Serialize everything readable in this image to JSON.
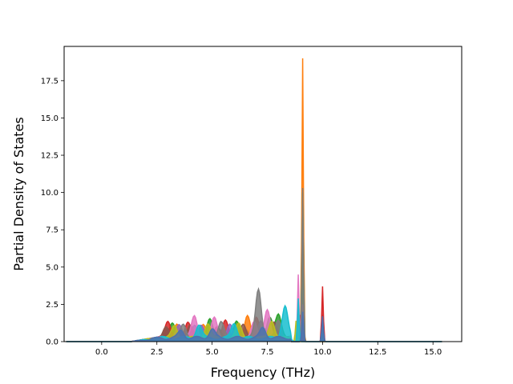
{
  "chart_data": {
    "type": "line",
    "title": "",
    "xlabel": "Frequency (THz)",
    "ylabel": "Partial Density of States",
    "xlim": [
      -1.7,
      16.3
    ],
    "ylim": [
      0,
      19.8
    ],
    "x_ticks": [
      0.0,
      2.5,
      5.0,
      7.5,
      10.0,
      12.5,
      15.0
    ],
    "x_tick_labels": [
      "0.0",
      "2.5",
      "5.0",
      "7.5",
      "10.0",
      "12.5",
      "15.0"
    ],
    "y_ticks": [
      0.0,
      2.5,
      5.0,
      7.5,
      10.0,
      12.5,
      15.0,
      17.5
    ],
    "y_tick_labels": [
      "0.0",
      "2.5",
      "5.0",
      "7.5",
      "10.0",
      "12.5",
      "15.0",
      "17.5"
    ],
    "grid": false,
    "legend": "none",
    "series": [
      {
        "color": "#1f77b4",
        "peaks": [
          [
            3.0,
            0.6
          ],
          [
            4.2,
            0.8
          ],
          [
            5.3,
            0.7
          ],
          [
            6.5,
            0.5
          ],
          [
            7.4,
            0.7
          ],
          [
            9.1,
            3.0
          ],
          [
            10.0,
            1.8
          ]
        ]
      },
      {
        "color": "#ff7f0e",
        "peaks": [
          [
            3.4,
            0.9
          ],
          [
            4.6,
            1.0
          ],
          [
            6.6,
            1.6
          ],
          [
            9.1,
            19.0
          ],
          [
            10.0,
            1.0
          ]
        ]
      },
      {
        "color": "#2ca02c",
        "peaks": [
          [
            3.2,
            0.9
          ],
          [
            4.9,
            1.2
          ],
          [
            6.1,
            1.1
          ],
          [
            7.6,
            1.4
          ],
          [
            8.0,
            1.5
          ],
          [
            8.9,
            2.1
          ],
          [
            9.1,
            10.0
          ]
        ]
      },
      {
        "color": "#d62728",
        "peaks": [
          [
            3.0,
            1.1
          ],
          [
            3.9,
            1.0
          ],
          [
            5.6,
            1.1
          ],
          [
            7.0,
            1.3
          ],
          [
            9.0,
            1.8
          ],
          [
            10.0,
            3.7
          ]
        ]
      },
      {
        "color": "#9467bd",
        "peaks": [
          [
            3.5,
            0.8
          ],
          [
            4.5,
            0.9
          ],
          [
            5.8,
            1.0
          ],
          [
            7.2,
            1.2
          ],
          [
            9.1,
            2.5
          ]
        ]
      },
      {
        "color": "#8c564b",
        "peaks": [
          [
            2.9,
            0.7
          ],
          [
            4.0,
            0.9
          ],
          [
            5.2,
            0.8
          ],
          [
            6.4,
            1.0
          ],
          [
            7.8,
            1.1
          ],
          [
            9.1,
            1.5
          ]
        ]
      },
      {
        "color": "#e377c2",
        "peaks": [
          [
            4.2,
            1.5
          ],
          [
            5.1,
            1.3
          ],
          [
            6.9,
            1.2
          ],
          [
            7.5,
            1.8
          ],
          [
            8.9,
            4.5
          ]
        ]
      },
      {
        "color": "#7f7f7f",
        "peaks": [
          [
            3.7,
            0.9
          ],
          [
            5.4,
            1.1
          ],
          [
            7.1,
            3.3
          ],
          [
            8.0,
            1.1
          ],
          [
            9.1,
            10.3
          ]
        ]
      },
      {
        "color": "#bcbd22",
        "peaks": [
          [
            3.3,
            0.8
          ],
          [
            4.8,
            1.0
          ],
          [
            6.2,
            0.9
          ],
          [
            7.7,
            1.2
          ],
          [
            8.8,
            1.4
          ]
        ]
      },
      {
        "color": "#17becf",
        "peaks": [
          [
            4.4,
            0.9
          ],
          [
            6.0,
            1.0
          ],
          [
            8.3,
            2.2
          ],
          [
            8.9,
            2.9
          ],
          [
            10.0,
            1.2
          ]
        ]
      },
      {
        "color": "#4c72b0",
        "peaks": [
          [
            3.6,
            0.5
          ],
          [
            5.0,
            0.6
          ],
          [
            7.3,
            0.7
          ],
          [
            9.1,
            2.0
          ],
          [
            10.0,
            1.7
          ]
        ]
      }
    ]
  }
}
